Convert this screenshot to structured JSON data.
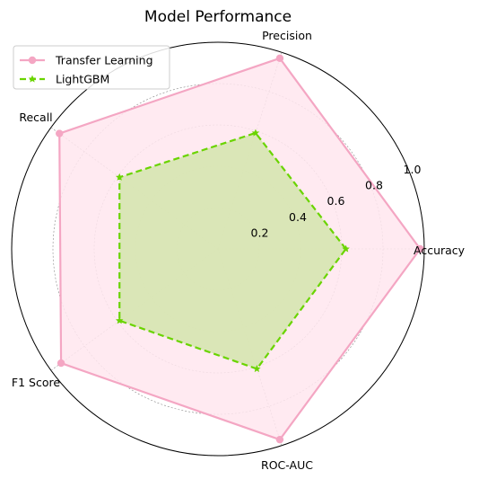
{
  "chart_data": {
    "type": "radar",
    "title": "Model Performance",
    "categories": [
      "Accuracy",
      "Precision",
      "Recall",
      "F1 Score",
      "ROC-AUC"
    ],
    "series": [
      {
        "name": "Transfer Learning",
        "values": [
          0.98,
          0.97,
          0.95,
          0.94,
          0.97
        ],
        "color": "#f4a6c3",
        "fill": "#ffe6ef",
        "line": "solid",
        "marker": "circle"
      },
      {
        "name": "LightGBM",
        "values": [
          0.62,
          0.59,
          0.59,
          0.59,
          0.61
        ],
        "color": "#6ad400",
        "fill": "#d6e6b0",
        "line": "dashed",
        "marker": "star"
      }
    ],
    "radial_ticks": [
      "0.2",
      "0.4",
      "0.6",
      "0.8",
      "1.0"
    ],
    "rlim": [
      0,
      1.0
    ],
    "grid": true,
    "legend_position": "top-left"
  }
}
